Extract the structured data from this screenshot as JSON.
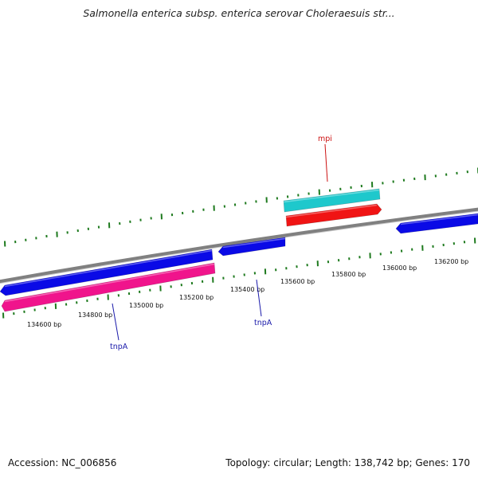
{
  "title": "Salmonella enterica subsp. enterica serovar Choleraesuis str...",
  "footer": {
    "accession": "Accession: NC_006856",
    "summary": "Topology: circular; Length: 138,742 bp; Genes: 170"
  },
  "colors": {
    "backbone": "#808080",
    "tick": "#1e7a1e",
    "gene_blue": "#0a0ae6",
    "gene_pink": "#f0148c",
    "gene_cyan": "#1ec8cc",
    "gene_red": "#f01414",
    "label_blue": "#1a1aaa",
    "label_red": "#cc1111"
  },
  "ticks": [
    {
      "label": "134600 bp"
    },
    {
      "label": "134800 bp"
    },
    {
      "label": "135000 bp"
    },
    {
      "label": "135200 bp"
    },
    {
      "label": "135400 bp"
    },
    {
      "label": "135600 bp"
    },
    {
      "label": "135800 bp"
    },
    {
      "label": "136000 bp"
    },
    {
      "label": "136200 bp"
    }
  ],
  "genes": [
    {
      "name": "",
      "color": "gene_blue",
      "strand": "lower",
      "tier": 1,
      "direction": "left"
    },
    {
      "name": "",
      "color": "gene_blue",
      "strand": "lower",
      "tier": 1,
      "direction": "left"
    },
    {
      "name": "",
      "color": "gene_blue",
      "strand": "lower",
      "tier": 1,
      "direction": "left"
    },
    {
      "name": "",
      "color": "gene_pink",
      "strand": "lower",
      "tier": 2,
      "direction": "left"
    },
    {
      "name": "",
      "color": "gene_cyan",
      "strand": "upper",
      "tier": 2,
      "direction": "none"
    },
    {
      "name": "",
      "color": "gene_red",
      "strand": "upper",
      "tier": 1,
      "direction": "right"
    }
  ],
  "labels": [
    {
      "text": "tnpA",
      "color": "label_blue"
    },
    {
      "text": "tnpA",
      "color": "label_blue"
    },
    {
      "text": "mpi",
      "color": "label_red"
    }
  ]
}
